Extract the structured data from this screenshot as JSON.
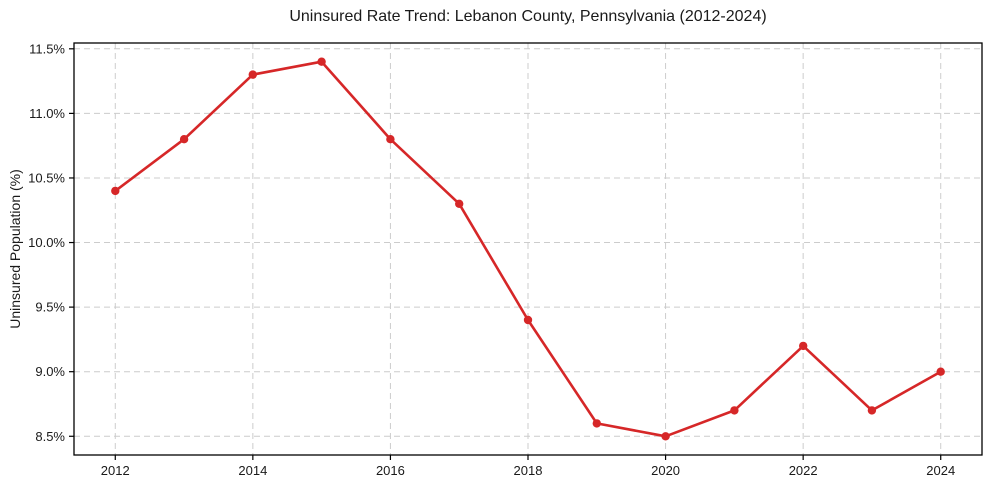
{
  "chart_data": {
    "type": "line",
    "title": "Uninsured Rate Trend: Lebanon County, Pennsylvania (2012-2024)",
    "xlabel": "",
    "ylabel": "Uninsured Population (%)",
    "x": [
      2012,
      2013,
      2014,
      2015,
      2016,
      2017,
      2018,
      2019,
      2020,
      2021,
      2022,
      2023,
      2024
    ],
    "values": [
      10.4,
      10.8,
      11.3,
      11.4,
      10.8,
      10.3,
      9.4,
      8.6,
      8.5,
      8.7,
      9.2,
      8.7,
      9.0
    ],
    "xlim": [
      2011.4,
      2024.6
    ],
    "ylim": [
      8.355,
      11.545
    ],
    "x_ticks": [
      2012,
      2014,
      2016,
      2018,
      2020,
      2022,
      2024
    ],
    "x_tick_labels": [
      "2012",
      "2014",
      "2016",
      "2018",
      "2020",
      "2022",
      "2024"
    ],
    "y_ticks": [
      8.5,
      9.0,
      9.5,
      10.0,
      10.5,
      11.0,
      11.5
    ],
    "y_tick_labels": [
      "8.5%",
      "9.0%",
      "9.5%",
      "10.0%",
      "10.5%",
      "11.0%",
      "11.5%"
    ],
    "grid": true,
    "grid_style": "dashed",
    "legend_position": "none",
    "line_color": "#d62728",
    "grid_color": "#cccccc",
    "spine_color": "#000000",
    "marker": "circle"
  }
}
